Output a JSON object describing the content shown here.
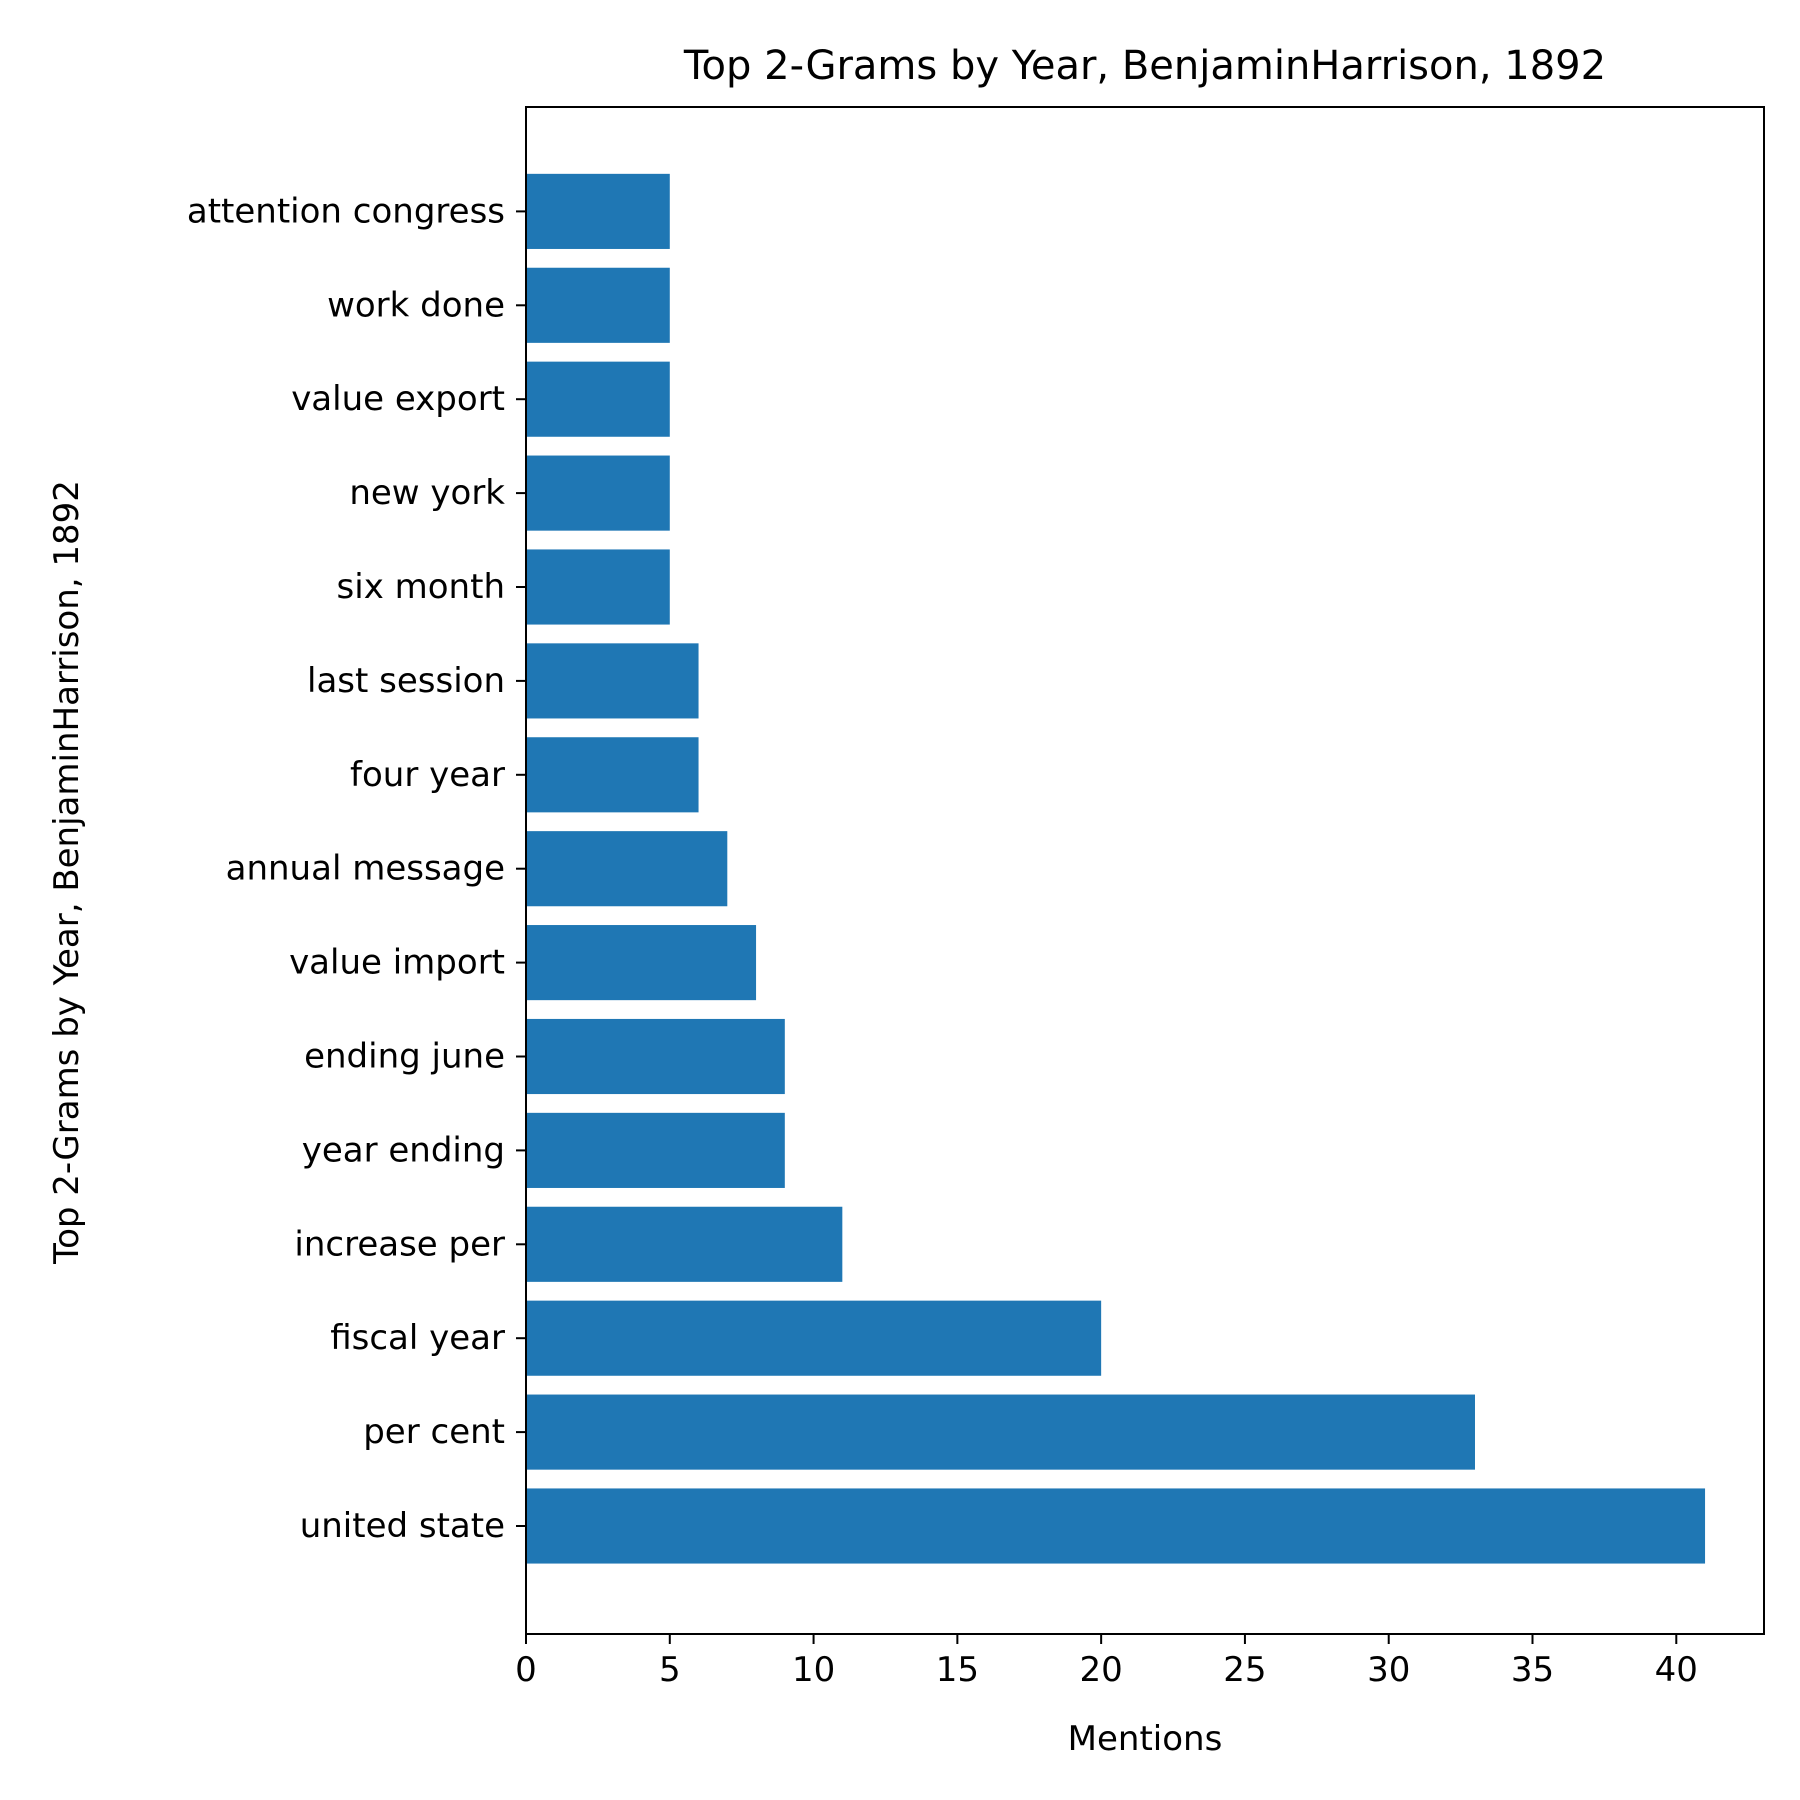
{
  "chart_data": {
    "type": "bar",
    "orientation": "horizontal",
    "title": "Top 2-Grams by Year, BenjaminHarrison, 1892",
    "xlabel": "Mentions",
    "ylabel": "Top 2-Grams by Year, BenjaminHarrison, 1892",
    "categories": [
      "united state",
      "per cent",
      "fiscal year",
      "increase per",
      "year ending",
      "ending june",
      "value import",
      "annual message",
      "four year",
      "last session",
      "six month",
      "new york",
      "value export",
      "work done",
      "attention congress"
    ],
    "values": [
      41,
      33,
      20,
      11,
      9,
      9,
      8,
      7,
      6,
      6,
      5,
      5,
      5,
      5,
      5
    ],
    "xlim": [
      0,
      43.05
    ],
    "xticks": [
      0,
      5,
      10,
      15,
      20,
      25,
      30,
      35,
      40
    ],
    "grid": false,
    "legend": "none",
    "colors": {
      "bar": "#1f77b4",
      "axis": "#000000",
      "background": "#ffffff"
    }
  }
}
